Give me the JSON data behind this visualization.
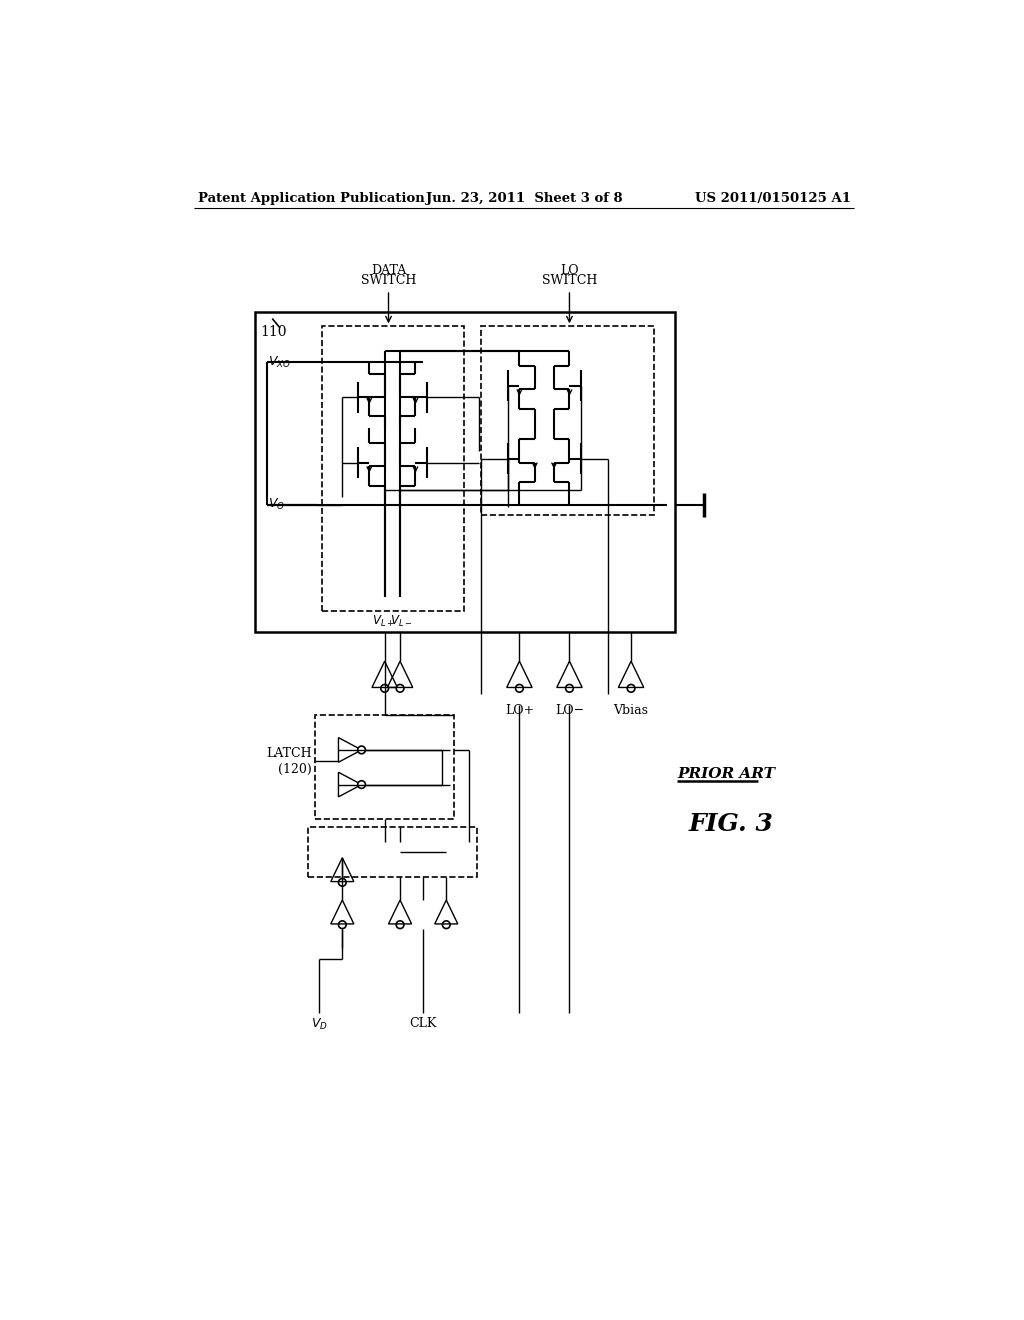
{
  "bg_color": "#ffffff",
  "header_left": "Patent Application Publication",
  "header_center": "Jun. 23, 2011  Sheet 3 of 8",
  "header_right": "US 2011/0150125 A1",
  "fig_label": "FIG. 3",
  "prior_art": "PRIOR ART"
}
